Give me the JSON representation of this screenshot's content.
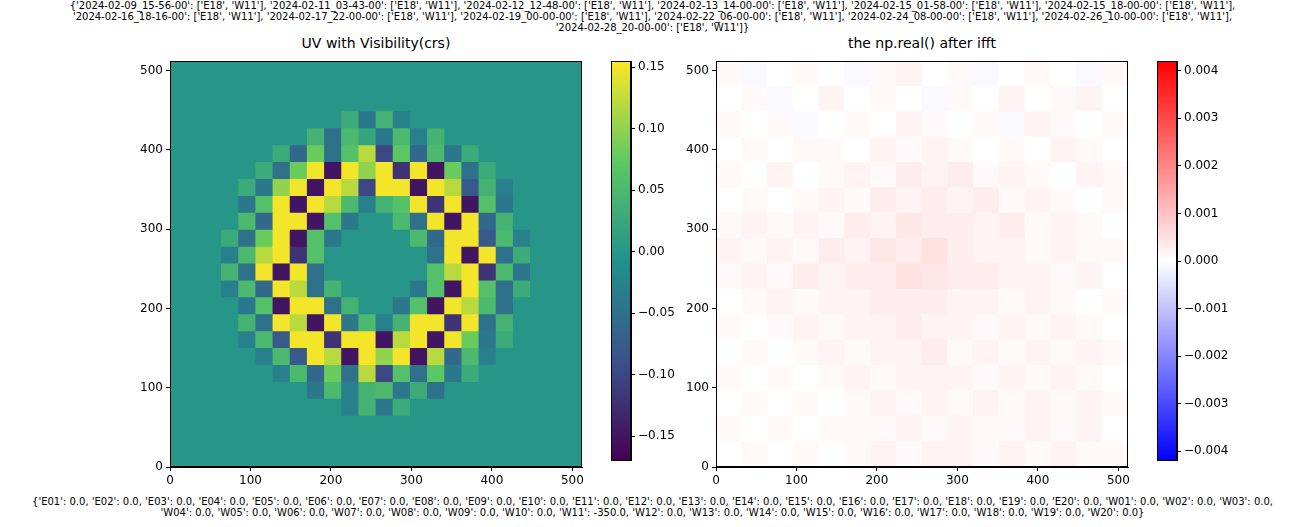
{
  "header_lines": [
    "{'2024-02-09_15-56-00': ['E18', 'W11'], '2024-02-11_03-43-00': ['E18', 'W11'], '2024-02-12_12-48-00': ['E18', 'W11'], '2024-02-13_14-00-00': ['E18', 'W11'], '2024-02-15_01-58-00': ['E18', 'W11'], '2024-02-15_18-00-00': ['E18', 'W11'],",
    "'2024-02-16_18-16-00': ['E18', 'W11'], '2024-02-17_22-00-00': ['E18', 'W11'], '2024-02-19_00-00-00': ['E18', 'W11'], '2024-02-22_06-00-00': ['E18', 'W11'], '2024-02-24_08-00-00': ['E18', 'W11'], '2024-02-26_10-00-00': ['E18', 'W11'],",
    "'2024-02-28_20-00-00': ['E18', 'W11']}"
  ],
  "footer_lines": [
    "{'E01': 0.0, 'E02': 0.0, 'E03': 0.0, 'E04': 0.0, 'E05': 0.0, 'E06': 0.0, 'E07': 0.0, 'E08': 0.0, 'E09': 0.0, 'E10': 0.0, 'E11': 0.0, 'E12': 0.0, 'E13': 0.0, 'E14': 0.0, 'E15': 0.0, 'E16': 0.0, 'E17': 0.0, 'E18': 0.0, 'E19': 0.0, 'E20': 0.0, 'W01': 0.0, 'W02': 0.0, 'W03': 0.0,",
    "'W04': 0.0, 'W05': 0.0, 'W06': 0.0, 'W07': 0.0, 'W08': 0.0, 'W09': 0.0, 'W10': 0.0, 'W11': -350.0, 'W12': 0.0, 'W13': 0.0, 'W14': 0.0, 'W15': 0.0, 'W16': 0.0, 'W17': 0.0, 'W18': 0.0, 'W19': 0.0, 'W20': 0.0}"
  ],
  "chart_data": [
    {
      "type": "heatmap",
      "title": "UV with Visibility(crs)",
      "color": "viridis",
      "grid": false,
      "xlim": [
        0,
        512
      ],
      "ylim": [
        0,
        512
      ],
      "xticks": [
        0,
        100,
        200,
        300,
        400,
        500
      ],
      "yticks": [
        0,
        100,
        200,
        300,
        400,
        500
      ],
      "colorbar_range": [
        -0.17,
        0.155
      ],
      "colorbar_ticks": [
        {
          "value": -0.15,
          "label": "−0.15"
        },
        {
          "value": -0.1,
          "label": "−0.10"
        },
        {
          "value": -0.05,
          "label": "−0.05"
        },
        {
          "value": 0,
          "label": "0.00"
        },
        0.05,
        {
          "value": 0.1,
          "label": "0.10"
        },
        0.15
      ],
      "cells": [
        [
          0,
          0,
          0,
          0,
          0,
          0,
          0,
          0,
          0,
          0,
          0,
          0,
          0,
          0,
          0,
          0,
          0,
          0,
          0,
          0,
          0,
          0,
          0,
          0
        ],
        [
          0,
          0,
          0,
          0,
          0,
          0,
          0,
          0,
          0,
          0,
          0,
          0,
          0,
          0,
          0,
          0,
          0,
          0,
          0,
          0,
          0,
          0,
          0,
          0
        ],
        [
          0,
          0,
          0,
          0,
          0,
          0,
          0,
          0,
          0,
          0,
          0,
          0,
          0,
          0,
          0,
          0,
          0,
          0,
          0,
          0,
          0,
          0,
          0,
          0
        ],
        [
          0,
          0,
          0,
          0,
          0,
          0,
          0,
          0,
          0,
          0,
          0.03,
          -0.04,
          0.04,
          -0.03,
          0,
          0,
          0,
          0,
          0,
          0,
          0,
          0,
          0,
          0
        ],
        [
          0,
          0,
          0,
          0,
          0,
          0,
          0,
          0,
          0.04,
          -0.05,
          0.05,
          0.02,
          -0.04,
          0.05,
          -0.03,
          0.04,
          0,
          0,
          0,
          0,
          0,
          0,
          0,
          0
        ],
        [
          0,
          0,
          0,
          0,
          0,
          0,
          0.03,
          -0.06,
          0.08,
          -0.05,
          0.06,
          0.12,
          -0.1,
          0.07,
          -0.06,
          0.05,
          -0.04,
          0.03,
          0,
          0,
          0,
          0,
          0,
          0
        ],
        [
          0,
          0,
          0,
          0,
          0,
          0.03,
          -0.05,
          0.08,
          0.15,
          -0.15,
          0.15,
          0.1,
          0.15,
          -0.12,
          0.15,
          -0.15,
          0.08,
          -0.05,
          0.03,
          0,
          0,
          0,
          0,
          0
        ],
        [
          0,
          0,
          0,
          0,
          0.03,
          -0.04,
          0.1,
          0.15,
          -0.15,
          0.15,
          0.12,
          -0.1,
          0.15,
          0.15,
          -0.15,
          0.15,
          0.12,
          -0.08,
          0.04,
          -0.03,
          0,
          0,
          0,
          0
        ],
        [
          0,
          0,
          0,
          0,
          -0.04,
          0.06,
          0.15,
          -0.15,
          0.15,
          0.12,
          0.05,
          -0.03,
          0.04,
          0.06,
          0.15,
          -0.12,
          0.15,
          -0.15,
          0.06,
          -0.04,
          0,
          0,
          0,
          0
        ],
        [
          0,
          0,
          0,
          0,
          0.05,
          -0.06,
          0.15,
          0.15,
          -0.15,
          0.06,
          -0.04,
          0,
          0,
          0.05,
          -0.05,
          0.15,
          -0.15,
          0.15,
          -0.06,
          0.04,
          0,
          0,
          0,
          0
        ],
        [
          0,
          0,
          0,
          0.03,
          -0.05,
          0.08,
          0.15,
          -0.15,
          0.06,
          -0.04,
          0,
          0,
          0,
          0,
          0.05,
          -0.06,
          0.15,
          0.15,
          -0.08,
          0.05,
          -0.03,
          0,
          0,
          0
        ],
        [
          0,
          0,
          0,
          -0.03,
          0.05,
          0.12,
          0.15,
          -0.12,
          0.06,
          0,
          0,
          0,
          0,
          0,
          0,
          -0.05,
          0.15,
          -0.15,
          0.15,
          -0.05,
          0.03,
          0,
          0,
          0
        ],
        [
          0,
          0,
          0,
          0.04,
          -0.05,
          0.15,
          -0.15,
          0.15,
          -0.05,
          0,
          0,
          0,
          0,
          0,
          0,
          0.06,
          0.12,
          0.15,
          -0.12,
          0.05,
          -0.04,
          0,
          0,
          0
        ],
        [
          0,
          0,
          0,
          -0.03,
          0.05,
          -0.06,
          0.15,
          0.12,
          -0.05,
          0.04,
          0,
          0,
          0,
          0,
          -0.04,
          0.06,
          -0.15,
          0.15,
          0.06,
          -0.05,
          0.03,
          0,
          0,
          0
        ],
        [
          0,
          0,
          0,
          0,
          -0.04,
          0.06,
          -0.15,
          0.15,
          0.15,
          -0.05,
          0.04,
          0,
          0,
          -0.04,
          0.06,
          -0.15,
          0.15,
          0.12,
          0.05,
          -0.05,
          0,
          0,
          0,
          0
        ],
        [
          0,
          0,
          0,
          0,
          0.04,
          -0.05,
          0.15,
          0.12,
          -0.15,
          0.15,
          -0.04,
          0.05,
          -0.03,
          0.04,
          0.15,
          0.15,
          -0.12,
          0.15,
          -0.05,
          0.04,
          0,
          0,
          0,
          0
        ],
        [
          0,
          0,
          0,
          0,
          -0.03,
          0.05,
          -0.08,
          0.15,
          0.15,
          -0.12,
          0.15,
          0.15,
          -0.15,
          0.12,
          0.15,
          -0.15,
          0.15,
          0.08,
          -0.04,
          0.03,
          0,
          0,
          0,
          0
        ],
        [
          0,
          0,
          0,
          0,
          0,
          -0.03,
          0.05,
          -0.08,
          0.15,
          0.12,
          -0.15,
          0.15,
          0.1,
          0.15,
          -0.15,
          0.12,
          -0.06,
          0.05,
          -0.03,
          0,
          0,
          0,
          0,
          0
        ],
        [
          0,
          0,
          0,
          0,
          0,
          0,
          -0.03,
          0.05,
          -0.06,
          0.08,
          -0.05,
          0.12,
          -0.1,
          0.06,
          -0.05,
          0.07,
          -0.04,
          0.03,
          0,
          0,
          0,
          0,
          0,
          0
        ],
        [
          0,
          0,
          0,
          0,
          0,
          0,
          0,
          0,
          -0.04,
          0.05,
          -0.03,
          0.04,
          0.05,
          -0.04,
          0.03,
          -0.05,
          0,
          0,
          0,
          0,
          0,
          0,
          0,
          0
        ],
        [
          0,
          0,
          0,
          0,
          0,
          0,
          0,
          0,
          0,
          0,
          -0.03,
          0.04,
          -0.04,
          0.03,
          0,
          0,
          0,
          0,
          0,
          0,
          0,
          0,
          0,
          0
        ],
        [
          0,
          0,
          0,
          0,
          0,
          0,
          0,
          0,
          0,
          0,
          0,
          0,
          0,
          0,
          0,
          0,
          0,
          0,
          0,
          0,
          0,
          0,
          0,
          0
        ],
        [
          0,
          0,
          0,
          0,
          0,
          0,
          0,
          0,
          0,
          0,
          0,
          0,
          0,
          0,
          0,
          0,
          0,
          0,
          0,
          0,
          0,
          0,
          0,
          0
        ],
        [
          0,
          0,
          0,
          0,
          0,
          0,
          0,
          0,
          0,
          0,
          0,
          0,
          0,
          0,
          0,
          0,
          0,
          0,
          0,
          0,
          0,
          0,
          0,
          0
        ]
      ]
    },
    {
      "type": "heatmap",
      "title": "the np.real() after ifft",
      "color": "bwr",
      "grid": false,
      "xlim": [
        0,
        512
      ],
      "ylim": [
        0,
        512
      ],
      "xticks": [
        0,
        100,
        200,
        300,
        400,
        500
      ],
      "yticks": [
        0,
        100,
        200,
        300,
        400,
        500
      ],
      "colorbar_range": [
        -0.0042,
        0.0042
      ],
      "colorbar_ticks": [
        {
          "value": -0.004,
          "label": "−0.004"
        },
        {
          "value": -0.003,
          "label": "−0.003"
        },
        {
          "value": -0.002,
          "label": "−0.002"
        },
        {
          "value": -0.001,
          "label": "−0.001"
        },
        {
          "value": 0,
          "label": "0.000"
        },
        0.001,
        0.002,
        0.003,
        0.004
      ],
      "cells": [
        [
          0.0001,
          -0.0001,
          0,
          0.0001,
          0,
          -0.0001,
          0.0001,
          0.0002,
          0,
          0.0001,
          -0.0001,
          0,
          0.0001,
          0,
          -0.0001,
          0.0001
        ],
        [
          0,
          0.0001,
          -0.0001,
          0,
          0.0002,
          0,
          0.0001,
          0,
          -0.0001,
          0.0001,
          0,
          0.0002,
          0,
          0.0001,
          0.0002,
          0
        ],
        [
          0.0001,
          0,
          0.0001,
          -0.0001,
          0,
          0.0001,
          0,
          0.0002,
          0.0001,
          0,
          0.0001,
          -0.0001,
          0.0002,
          0.0001,
          0,
          0.0001
        ],
        [
          0,
          0.0001,
          0,
          0.0001,
          0.0001,
          0,
          0.0002,
          0.0001,
          0.0002,
          0.0001,
          0,
          0.0001,
          0,
          0.0002,
          0.0001,
          0
        ],
        [
          0.0001,
          0,
          0.0002,
          0,
          0.0001,
          0.0002,
          0.0001,
          0.0003,
          0.0002,
          0.0003,
          0.0001,
          0.0002,
          0.0001,
          0,
          0.0002,
          0.0001
        ],
        [
          0,
          0.0001,
          0,
          0.0001,
          0.0002,
          0.0001,
          0.0003,
          0.0002,
          0.0003,
          0.0002,
          0.0003,
          0.0001,
          0.0002,
          0.0001,
          0,
          0.0001
        ],
        [
          0.0001,
          0.0002,
          0.0001,
          0.0002,
          0.0001,
          0.0003,
          0.0002,
          0.0004,
          0.0003,
          0.0003,
          0.0002,
          0.0003,
          0.0001,
          0.0002,
          0.0001,
          0
        ],
        [
          0.0002,
          0.0001,
          0.0002,
          0.0001,
          0.0003,
          0.0002,
          0.0004,
          0.0003,
          0.0005,
          0.0003,
          0.0002,
          0.0002,
          0.0001,
          0.0002,
          0.0001,
          0.0001
        ],
        [
          0.0001,
          0.0002,
          0.0001,
          0.0003,
          0.0002,
          0.0003,
          0.0003,
          0.0005,
          0.0004,
          0.0003,
          0.0003,
          0.0002,
          0.0002,
          0.0001,
          0.0002,
          0
        ],
        [
          0,
          0.0001,
          0.0002,
          0.0001,
          0.0002,
          0.0002,
          0.0003,
          0.0003,
          0.0003,
          0.0002,
          0.0002,
          0.0001,
          0.0002,
          0.0001,
          0,
          0.0001
        ],
        [
          0.0001,
          0,
          0.0001,
          0.0002,
          0.0001,
          0.0002,
          0.0002,
          0.0003,
          0.0002,
          0.0002,
          0.0001,
          0.0002,
          0.0001,
          0.0002,
          0.0001,
          0
        ],
        [
          0,
          0.0001,
          0,
          0.0001,
          0.0002,
          0.0001,
          0.0002,
          0.0002,
          0.0003,
          0.0001,
          0.0002,
          0.0001,
          0.0002,
          0.0001,
          0.0002,
          0.0001
        ],
        [
          0.0001,
          0,
          0.0001,
          0,
          0.0001,
          0.0002,
          0.0001,
          0.0002,
          0.0002,
          0.0002,
          0.0001,
          0.0002,
          0.0001,
          0.0002,
          0.0001,
          0
        ],
        [
          0,
          0.0001,
          0,
          0.0001,
          0,
          0.0001,
          0.0002,
          0.0001,
          0.0002,
          0.0001,
          0.0002,
          0.0001,
          0.0002,
          0.0001,
          0.0002,
          0.0001
        ],
        [
          0.0001,
          0,
          0.0001,
          0,
          0.0001,
          0.0001,
          0.0001,
          0.0002,
          0.0001,
          0.0002,
          0.0001,
          0.0001,
          0.0002,
          0.0001,
          0.0002,
          0
        ],
        [
          0,
          0.0001,
          0,
          0.0001,
          0,
          0.0001,
          0.0002,
          0.0001,
          0.0002,
          0.0002,
          0.0001,
          0.0002,
          0.0001,
          0.0002,
          0.0001,
          0.0001
        ]
      ]
    }
  ]
}
